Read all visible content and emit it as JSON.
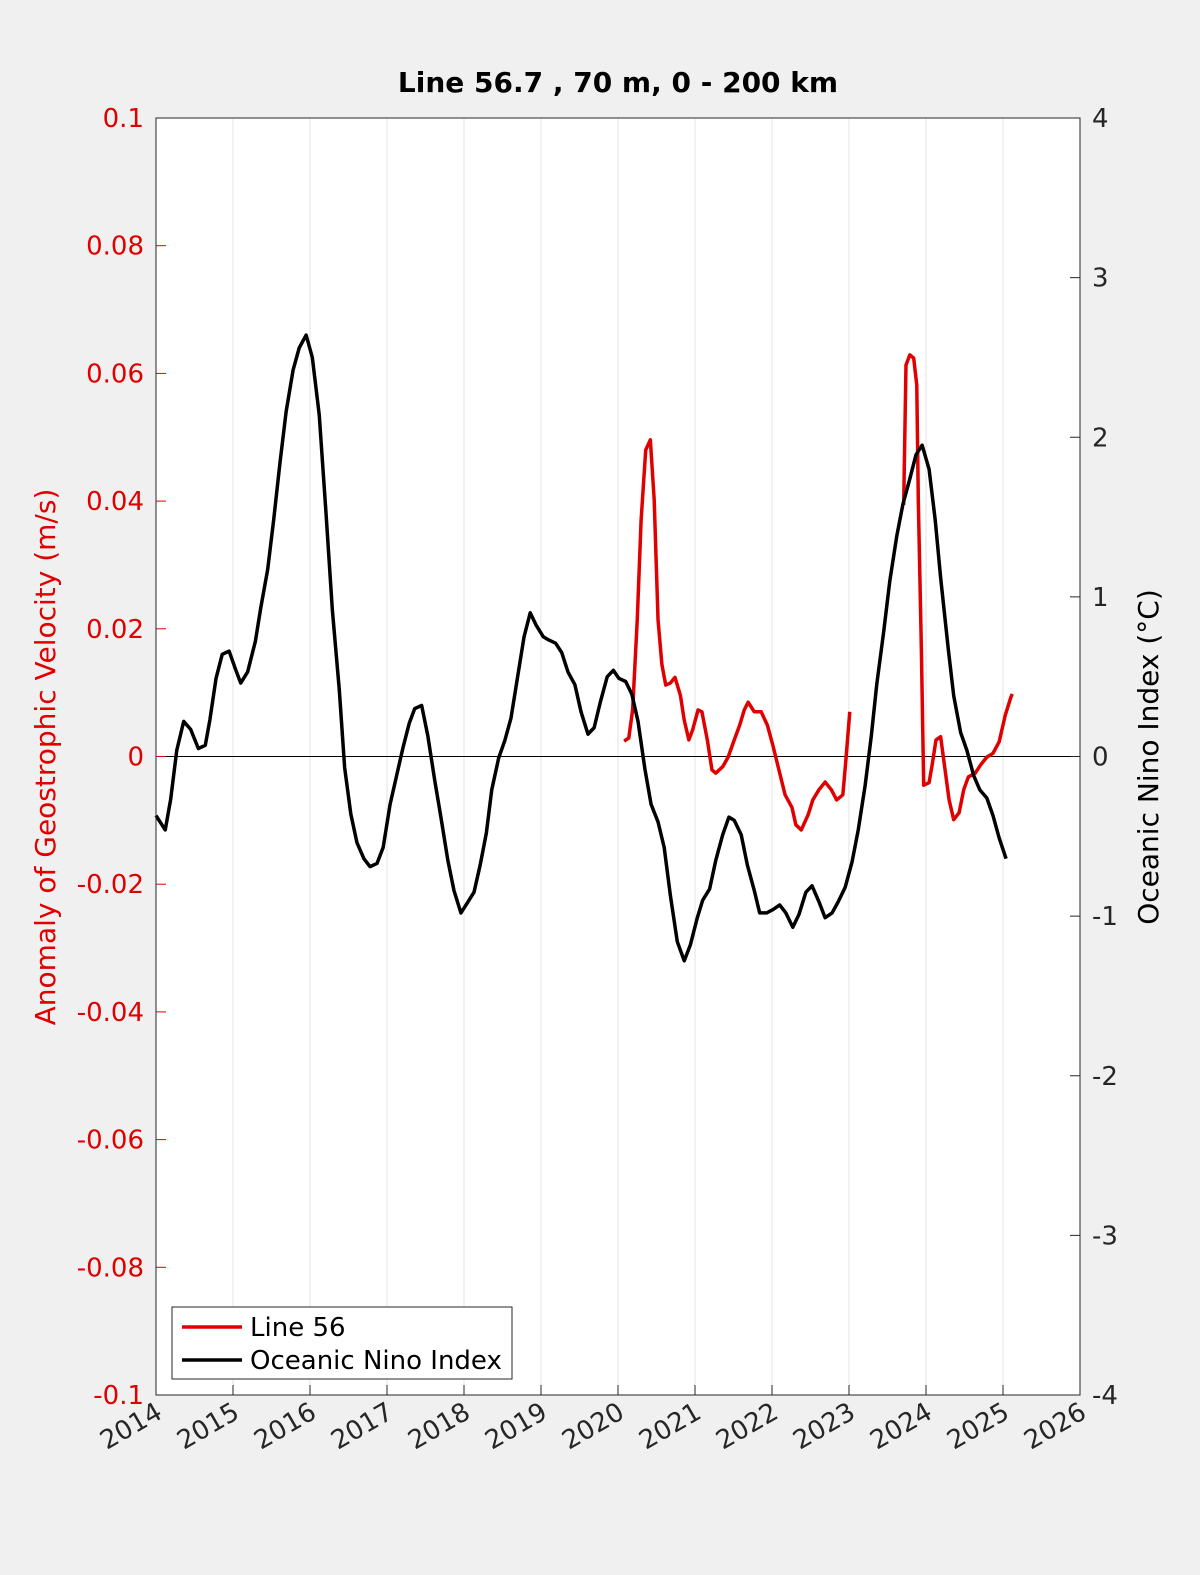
{
  "chart_data": {
    "type": "line",
    "title": "Line 56.7 , 70 m, 0 - 200 km",
    "ylabel": "Anomaly of Geostrophic Velocity (m/s)",
    "y2label": "Oceanic Nino Index (°C)",
    "xlim": [
      2014,
      2026
    ],
    "xticks": [
      2014,
      2015,
      2016,
      2017,
      2018,
      2019,
      2020,
      2021,
      2022,
      2023,
      2024,
      2025,
      2026
    ],
    "ylim": [
      -0.1,
      0.1
    ],
    "yticks": [
      -0.1,
      -0.08,
      -0.06,
      -0.04,
      -0.02,
      0,
      0.02,
      0.04,
      0.06,
      0.08,
      0.1
    ],
    "y2lim": [
      -4,
      4
    ],
    "y2ticks": [
      -4,
      -3,
      -2,
      -1,
      0,
      1,
      2,
      3,
      4
    ],
    "grid": "x",
    "baseline": 0,
    "legend": "lower left",
    "ycolor": "#e00000",
    "series": [
      {
        "name": "Line 56",
        "color": "#e00000",
        "axis": "y",
        "x": [
          2020.08,
          2020.14,
          2020.19,
          2020.25,
          2020.3,
          2020.36,
          2020.42,
          2020.47,
          2020.52,
          2020.57,
          2020.62,
          2020.68,
          2020.74,
          2020.81,
          2020.86,
          2020.92,
          2020.97,
          2021.04,
          2021.09,
          2021.16,
          2021.22,
          2021.27,
          2021.36,
          2021.43,
          2021.51,
          2021.58,
          2021.64,
          2021.69,
          2021.77,
          2021.86,
          2021.94,
          2022.01,
          2022.09,
          2022.17,
          2022.26,
          2022.31,
          2022.38,
          2022.47,
          2022.53,
          2022.61,
          2022.69,
          2022.77,
          2022.84,
          2022.92,
          2022.96,
          2023.01,
          2023.3,
          2023.71,
          2023.74,
          2023.79,
          2023.84,
          2023.88,
          2023.9,
          2023.94,
          2023.97,
          2024.04,
          2024.08,
          2024.13,
          2024.19,
          2024.23,
          2024.3,
          2024.36,
          2024.43,
          2024.49,
          2024.55,
          2024.64,
          2024.71,
          2024.79,
          2024.87,
          2024.95,
          2025.03,
          2025.1,
          2025.12
        ],
        "values": [
          0.0024,
          0.0029,
          0.0073,
          0.0214,
          0.037,
          0.048,
          0.0496,
          0.0402,
          0.0214,
          0.0144,
          0.0112,
          0.0115,
          0.0124,
          0.0096,
          0.0057,
          0.0026,
          0.0042,
          0.0073,
          0.007,
          0.0026,
          -0.0021,
          -0.0026,
          -0.0016,
          -0.0001,
          0.0026,
          0.0049,
          0.0073,
          0.0085,
          0.007,
          0.007,
          0.0049,
          0.0018,
          -0.0021,
          -0.006,
          -0.008,
          -0.0107,
          -0.0115,
          -0.0091,
          -0.0068,
          -0.0052,
          -0.004,
          -0.0052,
          -0.0068,
          -0.006,
          -0.0005,
          0.007,
          null,
          0.0394,
          0.0613,
          0.0629,
          0.0624,
          0.0582,
          0.0402,
          0.0167,
          -0.0045,
          -0.0041,
          -0.0013,
          0.0026,
          0.0031,
          -0.0005,
          -0.0068,
          -0.0099,
          -0.0088,
          -0.0052,
          -0.0032,
          -0.0026,
          -0.0013,
          -0.0001,
          0.0005,
          0.0023,
          0.0065,
          0.0092,
          0.0098
        ]
      },
      {
        "name": "Oceanic Nino Index",
        "color": "#000000",
        "axis": "y2",
        "x": [
          2014.0,
          2014.12,
          2014.19,
          2014.27,
          2014.36,
          2014.45,
          2014.55,
          2014.64,
          2014.7,
          2014.78,
          2014.86,
          2014.95,
          2015.03,
          2015.1,
          2015.19,
          2015.29,
          2015.36,
          2015.45,
          2015.53,
          2015.61,
          2015.69,
          2015.78,
          2015.86,
          2015.95,
          2016.03,
          2016.12,
          2016.21,
          2016.29,
          2016.38,
          2016.45,
          2016.53,
          2016.61,
          2016.7,
          2016.78,
          2016.87,
          2016.95,
          2017.04,
          2017.12,
          2017.21,
          2017.29,
          2017.36,
          2017.45,
          2017.53,
          2017.62,
          2017.7,
          2017.79,
          2017.87,
          2017.96,
          2018.04,
          2018.13,
          2018.21,
          2018.29,
          2018.36,
          2018.45,
          2018.53,
          2018.61,
          2018.69,
          2018.78,
          2018.86,
          2018.94,
          2019.03,
          2019.1,
          2019.19,
          2019.27,
          2019.35,
          2019.44,
          2019.52,
          2019.61,
          2019.69,
          2019.77,
          2019.86,
          2019.94,
          2020.01,
          2020.1,
          2020.18,
          2020.26,
          2020.35,
          2020.43,
          2020.52,
          2020.6,
          2020.68,
          2020.77,
          2020.86,
          2020.94,
          2021.03,
          2021.1,
          2021.19,
          2021.27,
          2021.36,
          2021.44,
          2021.51,
          2021.6,
          2021.68,
          2021.77,
          2021.84,
          2021.93,
          2022.01,
          2022.1,
          2022.18,
          2022.27,
          2022.35,
          2022.44,
          2022.52,
          2022.61,
          2022.69,
          2022.78,
          2022.86,
          2022.95,
          2023.04,
          2023.12,
          2023.21,
          2023.29,
          2023.36,
          2023.45,
          2023.53,
          2023.62,
          2023.7,
          2023.79,
          2023.87,
          2023.95,
          2024.04,
          2024.12,
          2024.19,
          2024.29,
          2024.36,
          2024.45,
          2024.53,
          2024.62,
          2024.7,
          2024.79,
          2024.87,
          2024.95,
          2025.04
        ],
        "values": [
          -0.37,
          -0.46,
          -0.27,
          0.04,
          0.22,
          0.17,
          0.05,
          0.07,
          0.23,
          0.49,
          0.64,
          0.66,
          0.55,
          0.46,
          0.53,
          0.72,
          0.93,
          1.17,
          1.49,
          1.84,
          2.16,
          2.42,
          2.56,
          2.64,
          2.5,
          2.14,
          1.51,
          0.92,
          0.42,
          -0.07,
          -0.36,
          -0.54,
          -0.64,
          -0.69,
          -0.67,
          -0.57,
          -0.3,
          -0.13,
          0.06,
          0.21,
          0.3,
          0.32,
          0.13,
          -0.15,
          -0.38,
          -0.65,
          -0.84,
          -0.98,
          -0.92,
          -0.85,
          -0.68,
          -0.48,
          -0.21,
          -0.01,
          0.1,
          0.24,
          0.48,
          0.75,
          0.9,
          0.82,
          0.75,
          0.73,
          0.71,
          0.65,
          0.53,
          0.45,
          0.28,
          0.14,
          0.18,
          0.34,
          0.5,
          0.54,
          0.49,
          0.47,
          0.39,
          0.22,
          -0.08,
          -0.3,
          -0.41,
          -0.57,
          -0.87,
          -1.16,
          -1.28,
          -1.18,
          -1.01,
          -0.9,
          -0.83,
          -0.65,
          -0.49,
          -0.38,
          -0.4,
          -0.49,
          -0.68,
          -0.84,
          -0.98,
          -0.98,
          -0.96,
          -0.93,
          -0.98,
          -1.07,
          -0.99,
          -0.85,
          -0.81,
          -0.91,
          -1.01,
          -0.98,
          -0.91,
          -0.82,
          -0.66,
          -0.46,
          -0.18,
          0.13,
          0.45,
          0.78,
          1.1,
          1.38,
          1.58,
          1.74,
          1.89,
          1.95,
          1.8,
          1.48,
          1.12,
          0.67,
          0.38,
          0.15,
          0.04,
          -0.12,
          -0.21,
          -0.26,
          -0.37,
          -0.51,
          -0.64
        ]
      }
    ]
  }
}
